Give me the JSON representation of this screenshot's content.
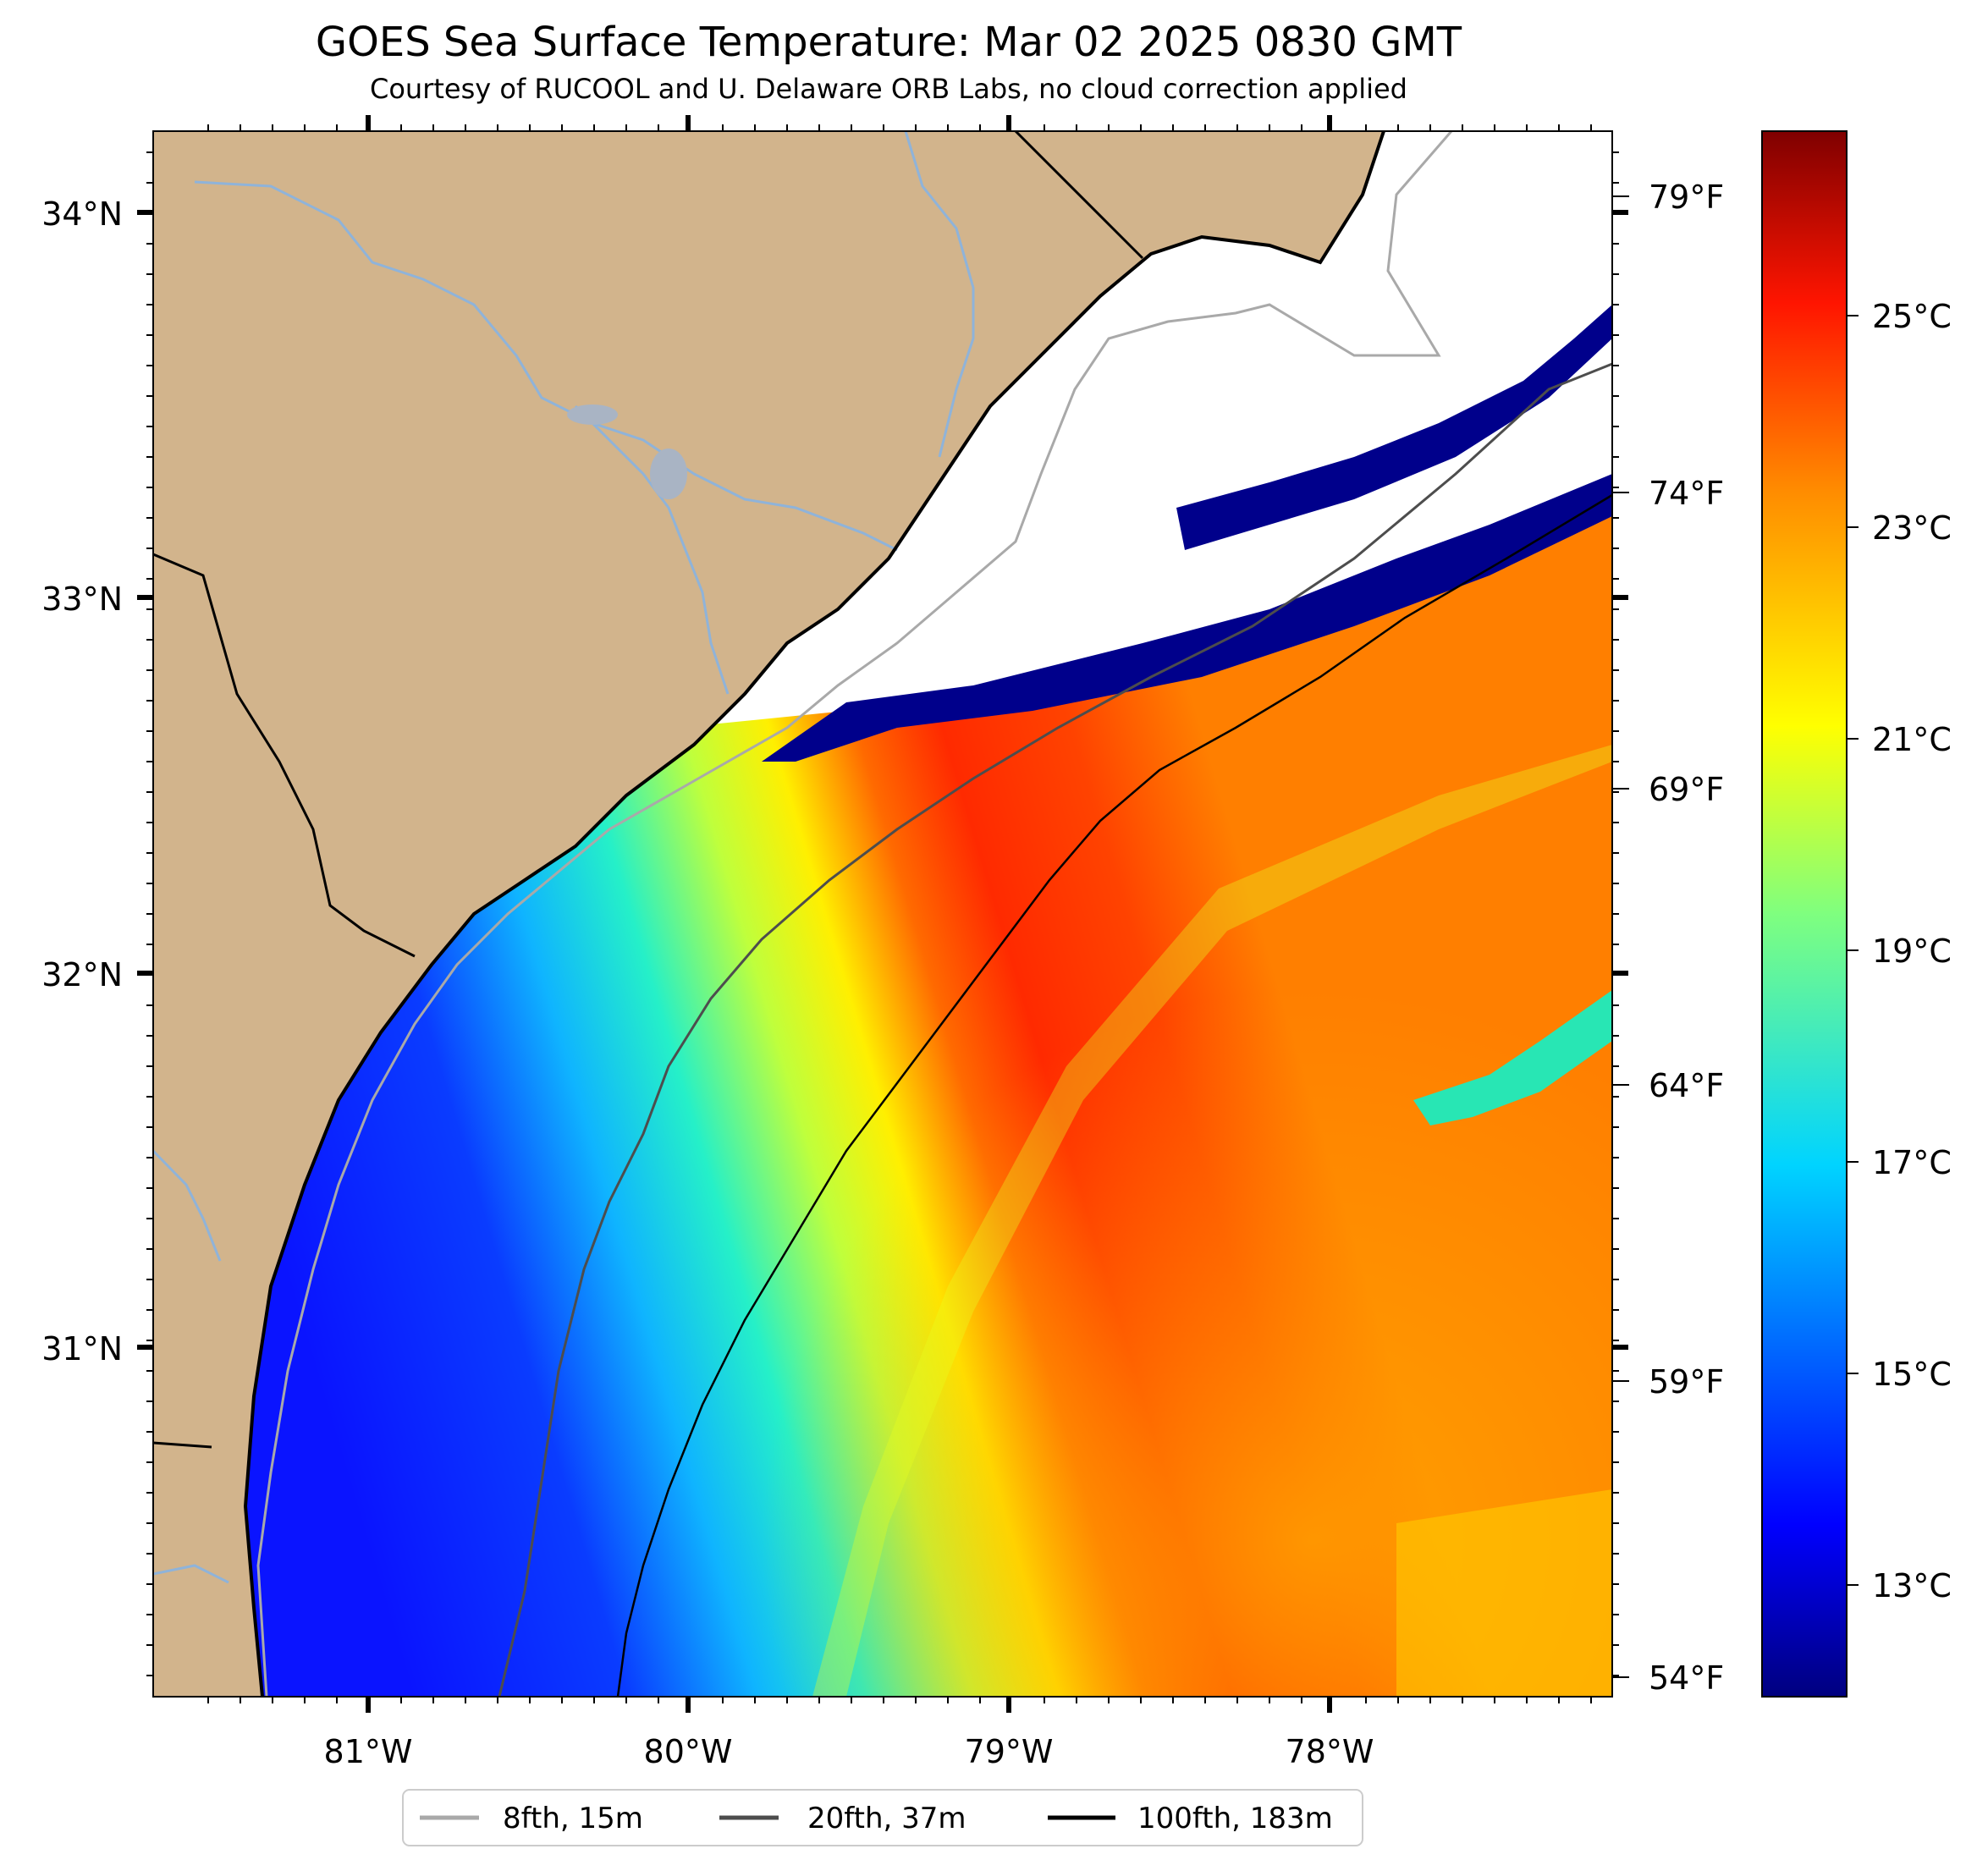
{
  "title": "GOES Sea Surface Temperature: Mar 02 2025 0830 GMT",
  "subtitle": "Courtesy of RUCOOL and U. Delaware ORB Labs, no cloud correction applied",
  "map": {
    "lon_range": [
      -81.67,
      -77.1
    ],
    "lat_range": [
      30.2,
      34.22
    ],
    "lon_ticks": [
      "81°W",
      "80°W",
      "79°W",
      "78°W"
    ],
    "lat_ticks": [
      "34°N",
      "33°N",
      "32°N",
      "31°N"
    ],
    "fahrenheit_ticks": [
      "79°F",
      "74°F",
      "69°F",
      "64°F",
      "59°F",
      "54°F"
    ]
  },
  "colorbar": {
    "range_c": [
      12,
      27
    ],
    "ticks": [
      "25°C",
      "23°C",
      "21°C",
      "19°C",
      "17°C",
      "15°C",
      "13°C"
    ],
    "colormap": "jet"
  },
  "legend": {
    "entries": [
      {
        "label": "8fth, 15m",
        "color": "#a9a9a9"
      },
      {
        "label": "20fth, 37m",
        "color": "#4d4d4d"
      },
      {
        "label": "100fth, 183m",
        "color": "#000000"
      }
    ]
  },
  "colors": {
    "land": "#d2b48c",
    "rivers": "#8fb3d9",
    "cloud_mask": "#ffffff",
    "cold_band": "#00008b"
  }
}
